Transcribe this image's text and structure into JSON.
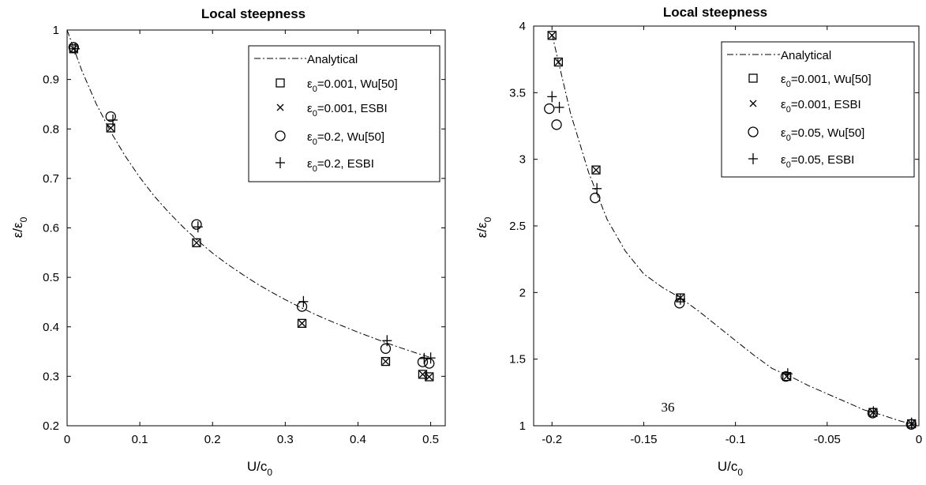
{
  "page_number": "36",
  "chart_data": [
    {
      "type": "scatter",
      "title": "Local steepness",
      "xlabel": "U/c",
      "xlabel_sub": "0",
      "ylabel": "ε/ε",
      "ylabel_sub": "0",
      "xlim": [
        0,
        0.52
      ],
      "ylim": [
        0.2,
        1.0
      ],
      "xticks": [
        "0",
        "0.1",
        "0.2",
        "0.3",
        "0.4",
        "0.5"
      ],
      "xtick_values": [
        0,
        0.1,
        0.2,
        0.3,
        0.4,
        0.5
      ],
      "yticks": [
        "0.2",
        "0.3",
        "0.4",
        "0.5",
        "0.6",
        "0.7",
        "0.8",
        "0.9",
        "1"
      ],
      "ytick_values": [
        0.2,
        0.3,
        0.4,
        0.5,
        0.6,
        0.7,
        0.8,
        0.9,
        1.0
      ],
      "grid": false,
      "legend_position": "top-right",
      "series": [
        {
          "name": "Analytical",
          "marker": "dashdot-line",
          "x": [
            0,
            0.02,
            0.04,
            0.06,
            0.08,
            0.1,
            0.12,
            0.14,
            0.16,
            0.18,
            0.2,
            0.22,
            0.24,
            0.26,
            0.28,
            0.3,
            0.32,
            0.34,
            0.36,
            0.38,
            0.4,
            0.42,
            0.44,
            0.46,
            0.48,
            0.5
          ],
          "y": [
            1.0,
            0.919,
            0.851,
            0.794,
            0.745,
            0.702,
            0.664,
            0.631,
            0.601,
            0.574,
            0.549,
            0.527,
            0.507,
            0.488,
            0.471,
            0.455,
            0.44,
            0.426,
            0.413,
            0.401,
            0.389,
            0.378,
            0.367,
            0.357,
            0.347,
            0.338
          ]
        },
        {
          "name": "=0.001, Wu[50]",
          "eps_label": "ε",
          "eps_sub": "0",
          "marker": "square",
          "x": [
            0.009,
            0.06,
            0.178,
            0.323,
            0.438,
            0.489,
            0.498
          ],
          "y": [
            0.962,
            0.802,
            0.57,
            0.407,
            0.33,
            0.304,
            0.299
          ]
        },
        {
          "name": "=0.001, ESBI",
          "eps_label": "ε",
          "eps_sub": "0",
          "marker": "x",
          "x": [
            0.009,
            0.06,
            0.178,
            0.323,
            0.438,
            0.489,
            0.498
          ],
          "y": [
            0.962,
            0.802,
            0.57,
            0.407,
            0.33,
            0.304,
            0.299
          ]
        },
        {
          "name": "=0.2, Wu[50]",
          "eps_label": "ε",
          "eps_sub": "0",
          "marker": "circle",
          "x": [
            0.009,
            0.06,
            0.178,
            0.323,
            0.438,
            0.489,
            0.498
          ],
          "y": [
            0.965,
            0.825,
            0.607,
            0.441,
            0.356,
            0.329,
            0.326
          ]
        },
        {
          "name": "=0.2, ESBI",
          "eps_label": "ε",
          "eps_sub": "0",
          "marker": "plus",
          "x": [
            0.011,
            0.063,
            0.18,
            0.325,
            0.44,
            0.491,
            0.5
          ],
          "y": [
            0.962,
            0.818,
            0.602,
            0.451,
            0.372,
            0.336,
            0.337
          ]
        }
      ]
    },
    {
      "type": "scatter",
      "title": "Local steepness",
      "xlabel": "U/c",
      "xlabel_sub": "0",
      "ylabel": "ε/ε",
      "ylabel_sub": "0",
      "xlim": [
        -0.21,
        0
      ],
      "ylim": [
        1,
        4
      ],
      "xticks": [
        "-0.2",
        "-0.15",
        "-0.1",
        "-0.05",
        "0"
      ],
      "xtick_values": [
        -0.2,
        -0.15,
        -0.1,
        -0.05,
        0
      ],
      "yticks": [
        "1",
        "1.5",
        "2",
        "2.5",
        "3",
        "3.5",
        "4"
      ],
      "ytick_values": [
        1,
        1.5,
        2,
        2.5,
        3,
        3.5,
        4
      ],
      "grid": false,
      "legend_position": "top-right",
      "series": [
        {
          "name": "Analytical",
          "marker": "dashdot-line",
          "x": [
            -0.2,
            -0.19,
            -0.18,
            -0.17,
            -0.16,
            -0.15,
            -0.14,
            -0.13,
            -0.12,
            -0.11,
            -0.1,
            -0.09,
            -0.08,
            -0.07,
            -0.06,
            -0.05,
            -0.04,
            -0.03,
            -0.02,
            -0.01,
            0
          ],
          "y": [
            3.94,
            3.35,
            2.9,
            2.55,
            2.31,
            2.14,
            2.04,
            1.96,
            1.86,
            1.75,
            1.64,
            1.53,
            1.43,
            1.37,
            1.3,
            1.24,
            1.18,
            1.12,
            1.08,
            1.035,
            1.0
          ]
        },
        {
          "name": "=0.001, Wu[50]",
          "eps_label": "ε",
          "eps_sub": "0",
          "marker": "square",
          "x": [
            -0.2,
            -0.1965,
            -0.176,
            -0.13,
            -0.072,
            -0.025,
            -0.004
          ],
          "y": [
            3.93,
            3.73,
            2.92,
            1.96,
            1.37,
            1.1,
            1.015
          ]
        },
        {
          "name": "=0.001, ESBI",
          "eps_label": "ε",
          "eps_sub": "0",
          "marker": "x",
          "x": [
            -0.2,
            -0.1965,
            -0.176,
            -0.13,
            -0.072,
            -0.025,
            -0.004
          ],
          "y": [
            3.93,
            3.73,
            2.92,
            1.96,
            1.37,
            1.1,
            1.015
          ]
        },
        {
          "name": "=0.05, Wu[50]",
          "eps_label": "ε",
          "eps_sub": "0",
          "marker": "circle",
          "x": [
            -0.2015,
            -0.1975,
            -0.1765,
            -0.1305,
            -0.0725,
            -0.0252,
            -0.0042
          ],
          "y": [
            3.38,
            3.26,
            2.71,
            1.92,
            1.37,
            1.095,
            1.01
          ]
        },
        {
          "name": "=0.05, ESBI",
          "eps_label": "ε",
          "eps_sub": "0",
          "marker": "plus",
          "x": [
            -0.2,
            -0.196,
            -0.1755,
            -0.13,
            -0.0715,
            -0.0248,
            -0.004
          ],
          "y": [
            3.47,
            3.39,
            2.78,
            1.95,
            1.39,
            1.105,
            1.02
          ]
        }
      ]
    }
  ]
}
